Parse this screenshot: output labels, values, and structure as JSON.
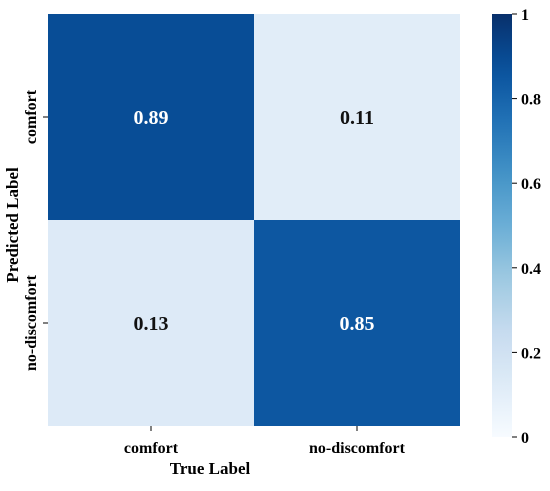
{
  "chart_data": {
    "type": "heatmap",
    "title": "",
    "xlabel": "True Label",
    "ylabel": "Predicted Label",
    "x_categories": [
      "comfort",
      "no-discomfort"
    ],
    "y_categories": [
      "comfort",
      "no-discomfort"
    ],
    "values": [
      [
        0.89,
        0.11
      ],
      [
        0.13,
        0.85
      ]
    ],
    "value_labels": [
      [
        "0.89",
        "0.11"
      ],
      [
        "0.13",
        "0.85"
      ]
    ],
    "colorbar": {
      "range": [
        0,
        1
      ],
      "ticks": [
        0,
        0.2,
        0.4,
        0.6,
        0.8,
        1
      ],
      "tick_labels": [
        "0",
        "0.2",
        "0.4",
        "0.6",
        "0.8",
        "1"
      ],
      "colormap": "Blues"
    },
    "colors": {
      "low": "#f7fbff",
      "high": "#08306b"
    }
  }
}
